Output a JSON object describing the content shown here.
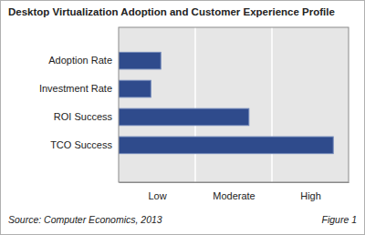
{
  "chart_data": {
    "type": "bar",
    "orientation": "horizontal",
    "title": "Desktop Virtualization Adoption and Customer Experience Profile",
    "categories": [
      "Adoption Rate",
      "Investment Rate",
      "ROI Success",
      "TCO Success"
    ],
    "values": [
      0.55,
      0.42,
      1.7,
      2.8
    ],
    "color": "#2f4b8c",
    "xlim": [
      0,
      3
    ],
    "xticks": [
      {
        "value": 0.5,
        "label": "Low"
      },
      {
        "value": 1.5,
        "label": "Moderate"
      },
      {
        "value": 2.5,
        "label": "High"
      }
    ],
    "grid": true,
    "annotations": [
      "Source: Computer Economics, 2013",
      "Figure 1"
    ]
  }
}
